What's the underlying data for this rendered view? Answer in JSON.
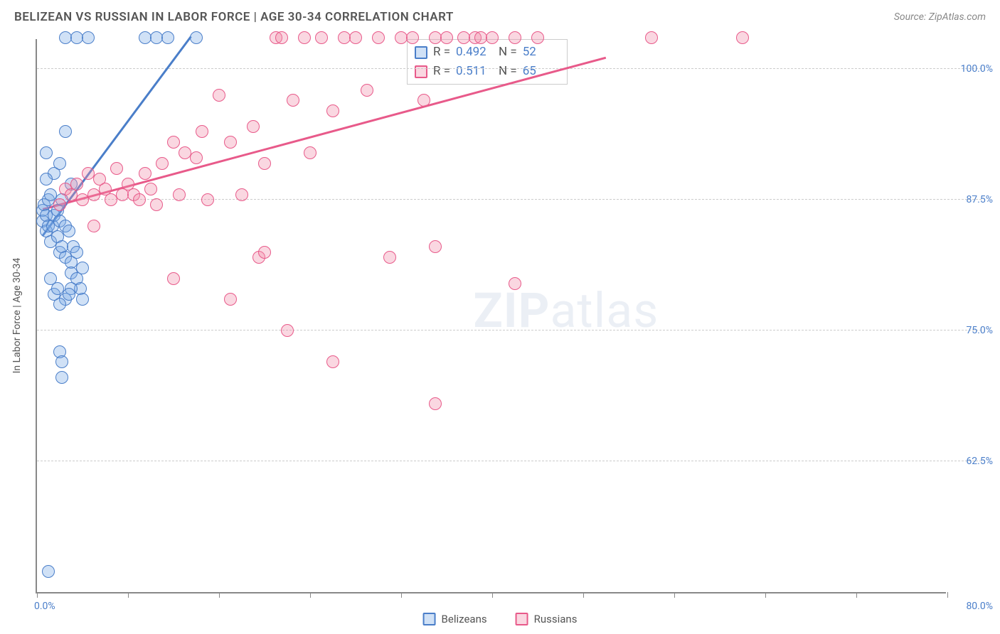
{
  "header": {
    "title": "BELIZEAN VS RUSSIAN IN LABOR FORCE | AGE 30-34 CORRELATION CHART",
    "source_prefix": "Source: ",
    "source": "ZipAtlas.com"
  },
  "chart": {
    "type": "scatter",
    "yaxis_title": "In Labor Force | Age 30-34",
    "xlim": [
      0,
      80
    ],
    "ylim": [
      50,
      103
    ],
    "xlabel_min": "0.0%",
    "xlabel_max": "80.0%",
    "yticks": [
      {
        "v": 62.5,
        "label": "62.5%"
      },
      {
        "v": 75.0,
        "label": "75.0%"
      },
      {
        "v": 87.5,
        "label": "87.5%"
      },
      {
        "v": 100.0,
        "label": "100.0%"
      }
    ],
    "xticks": [
      0,
      8,
      16,
      24,
      32,
      40,
      48,
      56,
      64,
      72,
      80
    ],
    "grid_color": "#cccccc",
    "axis_color": "#888888",
    "background_color": "#ffffff",
    "marker_radius": 9,
    "marker_opacity": 0.35,
    "line_width": 2.5,
    "watermark": {
      "bold": "ZIP",
      "rest": "atlas"
    }
  },
  "series": {
    "belizeans": {
      "label": "Belizeans",
      "color_stroke": "#4a7ec9",
      "color_fill": "rgba(120,170,230,0.35)",
      "R": "0.492",
      "N": "52",
      "line": {
        "x1": 0.5,
        "y1": 84.0,
        "x2": 13.5,
        "y2": 103.0
      },
      "points": [
        [
          0.5,
          86.5
        ],
        [
          0.5,
          85.5
        ],
        [
          0.6,
          87.0
        ],
        [
          0.8,
          84.5
        ],
        [
          0.8,
          86.0
        ],
        [
          1.0,
          85.0
        ],
        [
          1.0,
          87.5
        ],
        [
          1.2,
          83.5
        ],
        [
          1.2,
          88.0
        ],
        [
          1.4,
          85.0
        ],
        [
          1.5,
          86.0
        ],
        [
          1.5,
          90.0
        ],
        [
          1.8,
          84.0
        ],
        [
          1.8,
          86.5
        ],
        [
          2.0,
          85.5
        ],
        [
          2.0,
          82.5
        ],
        [
          2.2,
          83.0
        ],
        [
          2.2,
          87.5
        ],
        [
          2.5,
          82.0
        ],
        [
          2.5,
          85.0
        ],
        [
          2.8,
          84.5
        ],
        [
          3.0,
          81.5
        ],
        [
          3.0,
          80.5
        ],
        [
          3.2,
          83.0
        ],
        [
          3.5,
          80.0
        ],
        [
          3.5,
          82.5
        ],
        [
          3.8,
          79.0
        ],
        [
          4.0,
          78.0
        ],
        [
          4.0,
          81.0
        ],
        [
          0.8,
          92.0
        ],
        [
          2.0,
          91.0
        ],
        [
          2.5,
          94.0
        ],
        [
          2.5,
          103.0
        ],
        [
          3.5,
          103.0
        ],
        [
          4.5,
          103.0
        ],
        [
          9.5,
          103.0
        ],
        [
          10.5,
          103.0
        ],
        [
          11.5,
          103.0
        ],
        [
          14.0,
          103.0
        ],
        [
          3.0,
          89.0
        ],
        [
          0.8,
          89.5
        ],
        [
          2.0,
          73.0
        ],
        [
          2.2,
          72.0
        ],
        [
          2.2,
          70.5
        ],
        [
          1.0,
          52.0
        ],
        [
          1.2,
          80.0
        ],
        [
          1.5,
          78.5
        ],
        [
          1.8,
          79.0
        ],
        [
          2.5,
          78.0
        ],
        [
          3.0,
          79.0
        ],
        [
          2.0,
          77.5
        ],
        [
          2.8,
          78.5
        ]
      ]
    },
    "russians": {
      "label": "Russians",
      "color_stroke": "#e85a8a",
      "color_fill": "rgba(240,140,170,0.35)",
      "R": "0.511",
      "N": "65",
      "line": {
        "x1": 0.5,
        "y1": 86.5,
        "x2": 50.0,
        "y2": 101.0
      },
      "points": [
        [
          2.0,
          87.0
        ],
        [
          2.5,
          88.5
        ],
        [
          3.0,
          88.0
        ],
        [
          3.5,
          89.0
        ],
        [
          4.0,
          87.5
        ],
        [
          4.5,
          90.0
        ],
        [
          5.0,
          88.0
        ],
        [
          5.5,
          89.5
        ],
        [
          6.0,
          88.5
        ],
        [
          6.5,
          87.5
        ],
        [
          7.0,
          90.5
        ],
        [
          7.5,
          88.0
        ],
        [
          8.0,
          89.0
        ],
        [
          8.5,
          88.0
        ],
        [
          9.0,
          87.5
        ],
        [
          9.5,
          90.0
        ],
        [
          10.0,
          88.5
        ],
        [
          10.5,
          87.0
        ],
        [
          11.0,
          91.0
        ],
        [
          12.0,
          93.0
        ],
        [
          12.5,
          88.0
        ],
        [
          13.0,
          92.0
        ],
        [
          14.0,
          91.5
        ],
        [
          14.5,
          94.0
        ],
        [
          15.0,
          87.5
        ],
        [
          16.0,
          97.5
        ],
        [
          17.0,
          93.0
        ],
        [
          18.0,
          88.0
        ],
        [
          19.0,
          94.5
        ],
        [
          20.0,
          91.0
        ],
        [
          21.0,
          103.0
        ],
        [
          21.5,
          103.0
        ],
        [
          22.5,
          97.0
        ],
        [
          23.5,
          103.0
        ],
        [
          24.0,
          92.0
        ],
        [
          25.0,
          103.0
        ],
        [
          26.0,
          96.0
        ],
        [
          27.0,
          103.0
        ],
        [
          28.0,
          103.0
        ],
        [
          29.0,
          98.0
        ],
        [
          30.0,
          103.0
        ],
        [
          31.0,
          82.0
        ],
        [
          32.0,
          103.0
        ],
        [
          33.0,
          103.0
        ],
        [
          34.0,
          97.0
        ],
        [
          35.0,
          103.0
        ],
        [
          36.0,
          103.0
        ],
        [
          37.5,
          103.0
        ],
        [
          38.5,
          103.0
        ],
        [
          39.0,
          103.0
        ],
        [
          40.0,
          103.0
        ],
        [
          42.0,
          103.0
        ],
        [
          44.0,
          103.0
        ],
        [
          54.0,
          103.0
        ],
        [
          62.0,
          103.0
        ],
        [
          12.0,
          80.0
        ],
        [
          17.0,
          78.0
        ],
        [
          19.5,
          82.0
        ],
        [
          20.0,
          82.5
        ],
        [
          22.0,
          75.0
        ],
        [
          26.0,
          72.0
        ],
        [
          35.0,
          83.0
        ],
        [
          35.0,
          68.0
        ],
        [
          42.0,
          79.5
        ],
        [
          5.0,
          85.0
        ]
      ]
    }
  },
  "legend": {
    "r_label": "R =",
    "n_label": "N ="
  }
}
